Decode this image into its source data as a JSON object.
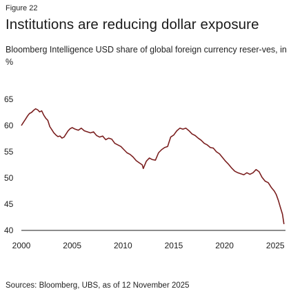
{
  "figure_label": "Figure 22",
  "title": "Institutions are reducing dollar exposure",
  "subtitle": "Bloomberg Intelligence USD share of global foreign currency reser-ves, in %",
  "source": "Sources: Bloomberg, UBS, as of 12 November 2025",
  "chart_data": {
    "type": "line",
    "title": "Institutions are reducing dollar exposure",
    "xlabel": "",
    "ylabel": "",
    "xlim": [
      2000,
      2026
    ],
    "ylim": [
      40,
      65
    ],
    "x_ticks": [
      2000,
      2005,
      2010,
      2015,
      2020,
      2025
    ],
    "y_ticks": [
      40,
      45,
      50,
      55,
      60,
      65
    ],
    "grid": false,
    "legend": "none",
    "series": [
      {
        "color": "#7a1e1e",
        "x": [
          2000.0,
          2000.2,
          2000.4,
          2000.6,
          2000.8,
          2001.0,
          2001.2,
          2001.4,
          2001.6,
          2001.8,
          2002.0,
          2002.2,
          2002.4,
          2002.6,
          2002.8,
          2003.0,
          2003.2,
          2003.4,
          2003.6,
          2003.8,
          2004.0,
          2004.2,
          2004.4,
          2004.6,
          2004.8,
          2005.0,
          2005.3,
          2005.6,
          2005.9,
          2006.2,
          2006.5,
          2006.8,
          2007.1,
          2007.4,
          2007.7,
          2008.0,
          2008.3,
          2008.6,
          2008.9,
          2009.2,
          2009.5,
          2009.8,
          2010.1,
          2010.4,
          2010.7,
          2011.0,
          2011.3,
          2011.6,
          2011.9,
          2012.0,
          2012.3,
          2012.6,
          2012.9,
          2013.2,
          2013.5,
          2013.8,
          2014.1,
          2014.4,
          2014.7,
          2015.0,
          2015.3,
          2015.6,
          2015.9,
          2016.2,
          2016.5,
          2016.8,
          2017.1,
          2017.4,
          2017.7,
          2018.0,
          2018.3,
          2018.6,
          2018.9,
          2019.2,
          2019.5,
          2019.8,
          2020.1,
          2020.4,
          2020.7,
          2021.0,
          2021.3,
          2021.6,
          2021.9,
          2022.2,
          2022.5,
          2022.8,
          2023.1,
          2023.4,
          2023.7,
          2024.0,
          2024.3,
          2024.6,
          2024.9,
          2025.1,
          2025.3,
          2025.5,
          2025.7,
          2025.85
        ],
        "values": [
          60.0,
          60.6,
          61.2,
          61.8,
          62.3,
          62.5,
          62.9,
          63.2,
          63.0,
          62.6,
          62.8,
          62.0,
          61.4,
          61.0,
          59.8,
          59.2,
          58.6,
          58.2,
          57.9,
          58.0,
          57.6,
          57.8,
          58.4,
          59.0,
          59.4,
          59.6,
          59.3,
          59.1,
          59.5,
          59.0,
          58.8,
          58.6,
          58.8,
          58.1,
          57.8,
          58.0,
          57.3,
          57.6,
          57.4,
          56.6,
          56.3,
          56.0,
          55.4,
          54.8,
          54.5,
          54.0,
          53.3,
          52.9,
          52.5,
          51.8,
          53.2,
          53.8,
          53.5,
          53.4,
          54.8,
          55.4,
          55.8,
          56.0,
          57.8,
          58.2,
          59.0,
          59.5,
          59.3,
          59.5,
          59.0,
          58.4,
          58.1,
          57.6,
          57.2,
          56.6,
          56.3,
          55.8,
          55.7,
          55.0,
          54.6,
          53.9,
          53.2,
          52.6,
          51.9,
          51.3,
          51.0,
          50.8,
          50.6,
          51.0,
          50.7,
          51.0,
          51.6,
          51.2,
          50.1,
          49.4,
          49.1,
          48.2,
          47.5,
          46.8,
          45.7,
          44.4,
          43.1,
          41.2
        ]
      }
    ]
  }
}
